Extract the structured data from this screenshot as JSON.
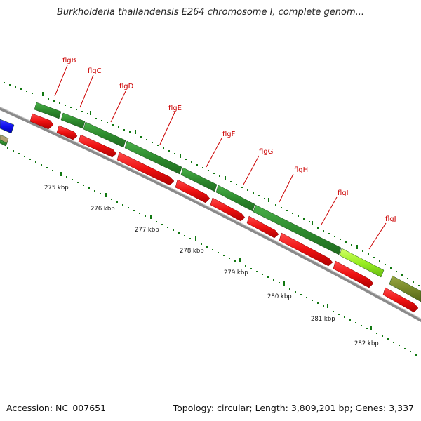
{
  "title": "Burkholderia thailandensis E264 chromosome I, complete genom...",
  "footer": {
    "accession": "Accession: NC_007651",
    "topology": "Topology: circular; Length: 3,809,201 bp; Genes: 3,337"
  },
  "colors": {
    "gene_dark_green": "#2e8b2e",
    "cds_red": "#ee1111",
    "backbone_gray": "#888888",
    "tick_green": "#117711",
    "label_red": "#cc0000",
    "gene_light_green": "#99ee22",
    "gene_olive": "#77882a",
    "gene_blue": "#1111ee"
  },
  "kbp_labels": [
    "275 kbp",
    "276 kbp",
    "277 kbp",
    "278 kbp",
    "279 kbp",
    "280 kbp",
    "281 kbp",
    "282 kbp"
  ],
  "gene_labels": [
    "flgB",
    "flgC",
    "flgD",
    "flgE",
    "flgF",
    "flgG",
    "flgH",
    "flgI",
    "flgJ"
  ]
}
